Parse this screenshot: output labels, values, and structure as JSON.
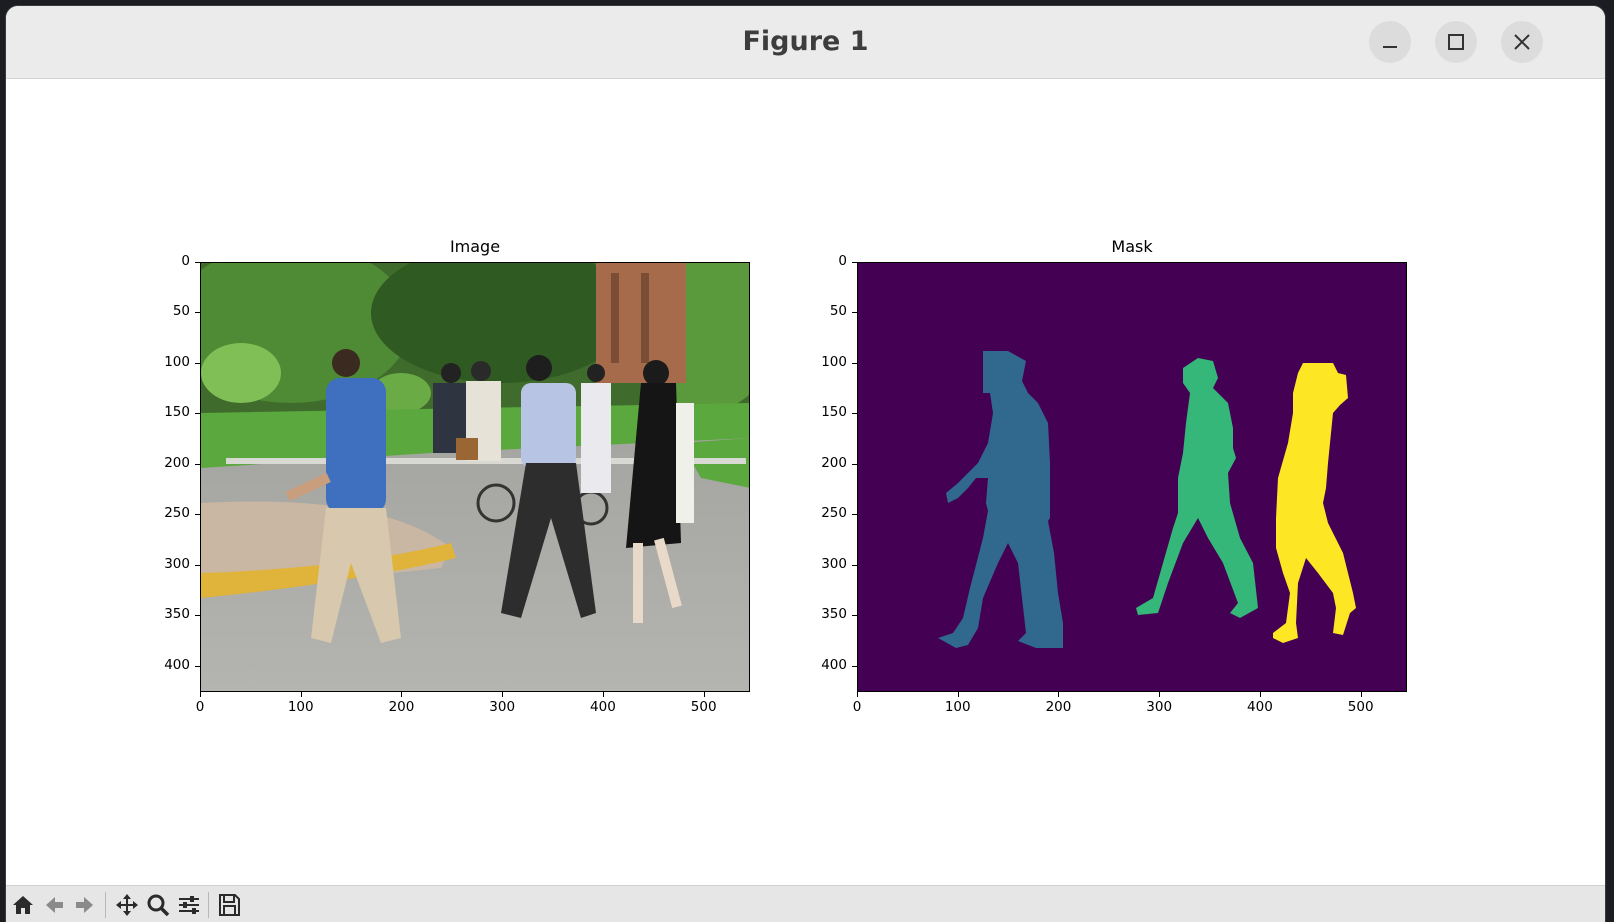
{
  "window": {
    "title": "Figure 1"
  },
  "titlebar_buttons": [
    "minimize",
    "maximize",
    "close"
  ],
  "figures": [
    {
      "title": "Image",
      "yticks": [
        "0",
        "50",
        "100",
        "150",
        "200",
        "250",
        "300",
        "350",
        "400"
      ],
      "xticks": [
        "0",
        "100",
        "200",
        "300",
        "400",
        "500"
      ]
    },
    {
      "title": "Mask",
      "yticks": [
        "0",
        "50",
        "100",
        "150",
        "200",
        "250",
        "300",
        "350",
        "400"
      ],
      "xticks": [
        "0",
        "100",
        "200",
        "300",
        "400",
        "500"
      ]
    }
  ],
  "mask_colors": {
    "background": "#440154",
    "person1": "#31688e",
    "person2": "#35b779",
    "person3": "#fde725"
  },
  "toolbar": [
    "home-icon",
    "back-icon",
    "forward-icon",
    "pan-icon",
    "zoom-icon",
    "configure-icon",
    "save-icon"
  ]
}
